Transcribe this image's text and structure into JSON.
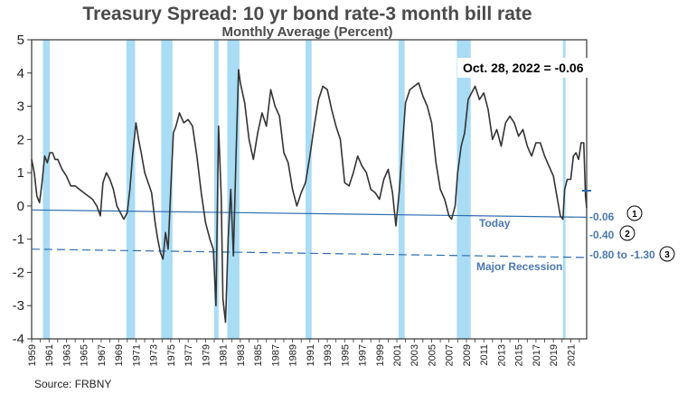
{
  "chart_data": {
    "type": "line",
    "title": "Treasury Spread: 10 yr bond rate-3 month bill rate",
    "subtitle": "Monthly Average (Percent)",
    "source": "Source: FRBNY",
    "xlim": [
      1959,
      2022.83
    ],
    "ylim": [
      -4,
      5
    ],
    "yticks": [
      -4,
      -3,
      -2,
      -1,
      0,
      1,
      2,
      3,
      4,
      5
    ],
    "xtick_labels": [
      "1959",
      "1961",
      "1963",
      "1965",
      "1967",
      "1969",
      "1971",
      "1973",
      "1975",
      "1977",
      "1979",
      "1981",
      "1983",
      "1985",
      "1987",
      "1989",
      "1991",
      "1993",
      "1995",
      "1997",
      "1999",
      "2001",
      "2003",
      "2005",
      "2007",
      "2009",
      "2011",
      "2013",
      "2015",
      "2017",
      "2019",
      "2021"
    ],
    "recessions": [
      [
        1960.3,
        1961.1
      ],
      [
        1969.9,
        1970.9
      ],
      [
        1973.9,
        1975.2
      ],
      [
        1980.0,
        1980.5
      ],
      [
        1981.5,
        1982.9
      ],
      [
        1990.5,
        1991.2
      ],
      [
        2001.2,
        2001.9
      ],
      [
        2007.9,
        2009.5
      ],
      [
        2020.1,
        2020.4
      ]
    ],
    "series": [
      {
        "x": [
          1959.0,
          1959.3,
          1959.6,
          1959.9,
          1960.2,
          1960.5,
          1960.8,
          1961.1,
          1961.4,
          1961.7,
          1962.0,
          1962.5,
          1963.0,
          1963.5,
          1964.0,
          1964.5,
          1965.0,
          1965.5,
          1966.0,
          1966.5,
          1966.9,
          1967.2,
          1967.6,
          1968.0,
          1968.4,
          1968.8,
          1969.2,
          1969.6,
          1970.0,
          1970.3,
          1970.6,
          1971.0,
          1971.3,
          1971.6,
          1972.0,
          1972.4,
          1972.8,
          1973.2,
          1973.5,
          1973.8,
          1974.1,
          1974.4,
          1974.7,
          1975.0,
          1975.3,
          1975.6,
          1976.0,
          1976.5,
          1977.0,
          1977.5,
          1978.0,
          1978.5,
          1979.0,
          1979.5,
          1979.9,
          1980.2,
          1980.5,
          1980.8,
          1981.0,
          1981.3,
          1981.6,
          1981.9,
          1982.2,
          1982.5,
          1982.8,
          1983.0,
          1983.5,
          1984.0,
          1984.5,
          1985.0,
          1985.5,
          1986.0,
          1986.5,
          1987.0,
          1987.5,
          1988.0,
          1988.5,
          1989.0,
          1989.5,
          1990.0,
          1990.5,
          1991.0,
          1991.5,
          1992.0,
          1992.5,
          1993.0,
          1993.5,
          1994.0,
          1994.5,
          1995.0,
          1995.5,
          1996.0,
          1996.5,
          1997.0,
          1997.5,
          1998.0,
          1998.5,
          1999.0,
          1999.5,
          2000.0,
          2000.5,
          2000.9,
          2001.3,
          2001.7,
          2002.0,
          2002.5,
          2003.0,
          2003.5,
          2004.0,
          2004.5,
          2005.0,
          2005.5,
          2006.0,
          2006.5,
          2007.0,
          2007.3,
          2007.7,
          2008.0,
          2008.4,
          2008.8,
          2009.2,
          2009.6,
          2010.0,
          2010.5,
          2011.0,
          2011.5,
          2012.0,
          2012.5,
          2013.0,
          2013.5,
          2014.0,
          2014.5,
          2015.0,
          2015.5,
          2016.0,
          2016.5,
          2017.0,
          2017.5,
          2018.0,
          2018.5,
          2019.0,
          2019.4,
          2019.8,
          2020.1,
          2020.3,
          2020.6,
          2021.0,
          2021.3,
          2021.6,
          2021.9,
          2022.2,
          2022.5,
          2022.7,
          2022.83
        ],
        "y": [
          1.4,
          1.0,
          0.3,
          0.1,
          0.7,
          1.5,
          1.3,
          1.6,
          1.6,
          1.4,
          1.4,
          1.1,
          0.9,
          0.6,
          0.6,
          0.5,
          0.4,
          0.3,
          0.2,
          0.0,
          -0.3,
          0.7,
          1.0,
          0.8,
          0.5,
          0.0,
          -0.2,
          -0.4,
          -0.2,
          0.5,
          1.5,
          2.5,
          2.0,
          1.6,
          1.0,
          0.7,
          0.4,
          -0.5,
          -1.0,
          -1.4,
          -1.6,
          -0.8,
          -1.3,
          0.5,
          2.2,
          2.4,
          2.8,
          2.5,
          2.6,
          2.4,
          1.5,
          0.4,
          -0.5,
          -1.0,
          -1.3,
          -3.0,
          2.4,
          0.3,
          -2.8,
          -3.5,
          -1.0,
          0.5,
          -1.5,
          1.5,
          4.1,
          3.7,
          3.1,
          2.0,
          1.4,
          2.2,
          2.8,
          2.4,
          3.5,
          3.0,
          2.7,
          1.6,
          1.3,
          0.5,
          0.0,
          0.4,
          0.7,
          1.5,
          2.4,
          3.2,
          3.6,
          3.5,
          2.9,
          2.4,
          2.0,
          0.7,
          0.6,
          1.0,
          1.5,
          1.2,
          1.0,
          0.5,
          0.4,
          0.2,
          0.8,
          1.1,
          0.4,
          -0.6,
          0.5,
          2.0,
          3.1,
          3.5,
          3.6,
          3.7,
          3.3,
          3.0,
          2.5,
          1.3,
          0.5,
          0.2,
          -0.3,
          -0.4,
          0.0,
          1.0,
          1.8,
          2.2,
          3.2,
          3.4,
          3.6,
          3.2,
          3.4,
          2.9,
          2.0,
          2.3,
          1.8,
          2.5,
          2.7,
          2.5,
          2.1,
          2.3,
          1.8,
          1.5,
          1.9,
          1.9,
          1.5,
          1.2,
          0.9,
          0.3,
          -0.3,
          -0.4,
          0.5,
          0.8,
          0.8,
          1.5,
          1.6,
          1.4,
          1.9,
          1.9,
          0.3,
          -0.06
        ]
      }
    ],
    "trend_lines": [
      {
        "style": "solid",
        "color": "#2f6db0",
        "x": [
          1959,
          2022.83
        ],
        "y": [
          -0.12,
          -0.34
        ]
      },
      {
        "style": "dashed",
        "color": "#2f6db0",
        "x": [
          1959,
          2022.83
        ],
        "y": [
          -1.3,
          -1.55
        ]
      }
    ],
    "annotations": {
      "callout": "Oct. 28, 2022 = -0.06",
      "today_label": "Today",
      "recession_label": "Major Recession",
      "levels": [
        {
          "value": "-0.06",
          "num": "1"
        },
        {
          "value": "-0.40",
          "num": "2"
        },
        {
          "value": "-0.80 to -1.30",
          "num": "3"
        }
      ]
    },
    "colors": {
      "line": "#333333",
      "recession": "#a9dcf5",
      "annotation": "#4a78b0"
    }
  }
}
